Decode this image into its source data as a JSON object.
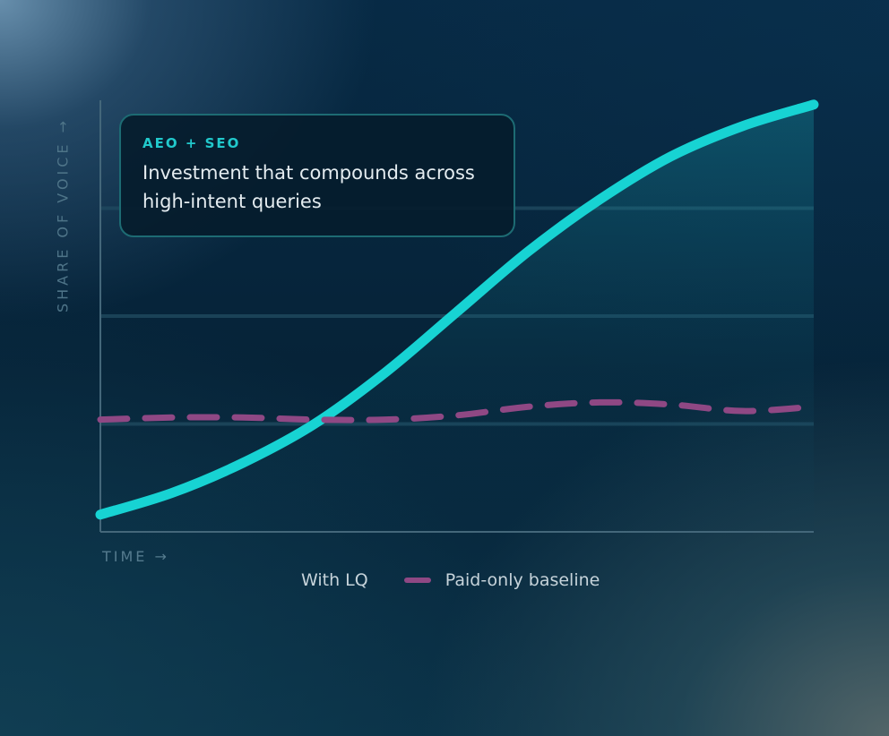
{
  "callout": {
    "tag": "AEO + SEO",
    "text": "Investment that compounds across high-intent queries"
  },
  "chart_data": {
    "type": "line",
    "xlabel": "TIME →",
    "ylabel": "SHARE OF VOICE →",
    "xlim": [
      0,
      10
    ],
    "ylim": [
      0,
      100
    ],
    "grid": "horizontal",
    "legend_position": "bottom-center",
    "series": [
      {
        "name": "With LQ",
        "style": "solid",
        "color": "#17d3d3",
        "x": [
          0,
          1,
          2,
          3,
          4,
          5,
          6,
          7,
          8,
          9,
          10
        ],
        "values": [
          4,
          9,
          16,
          25,
          37,
          51,
          65,
          77,
          87,
          94,
          99
        ]
      },
      {
        "name": "Paid-only baseline",
        "style": "dashed",
        "color": "#8f4884",
        "x": [
          0,
          1,
          2,
          3,
          4,
          5,
          6,
          7,
          8,
          9,
          10
        ],
        "values": [
          26,
          26.5,
          26.5,
          26,
          26,
          27,
          29,
          30,
          29.5,
          28,
          29
        ]
      }
    ]
  }
}
